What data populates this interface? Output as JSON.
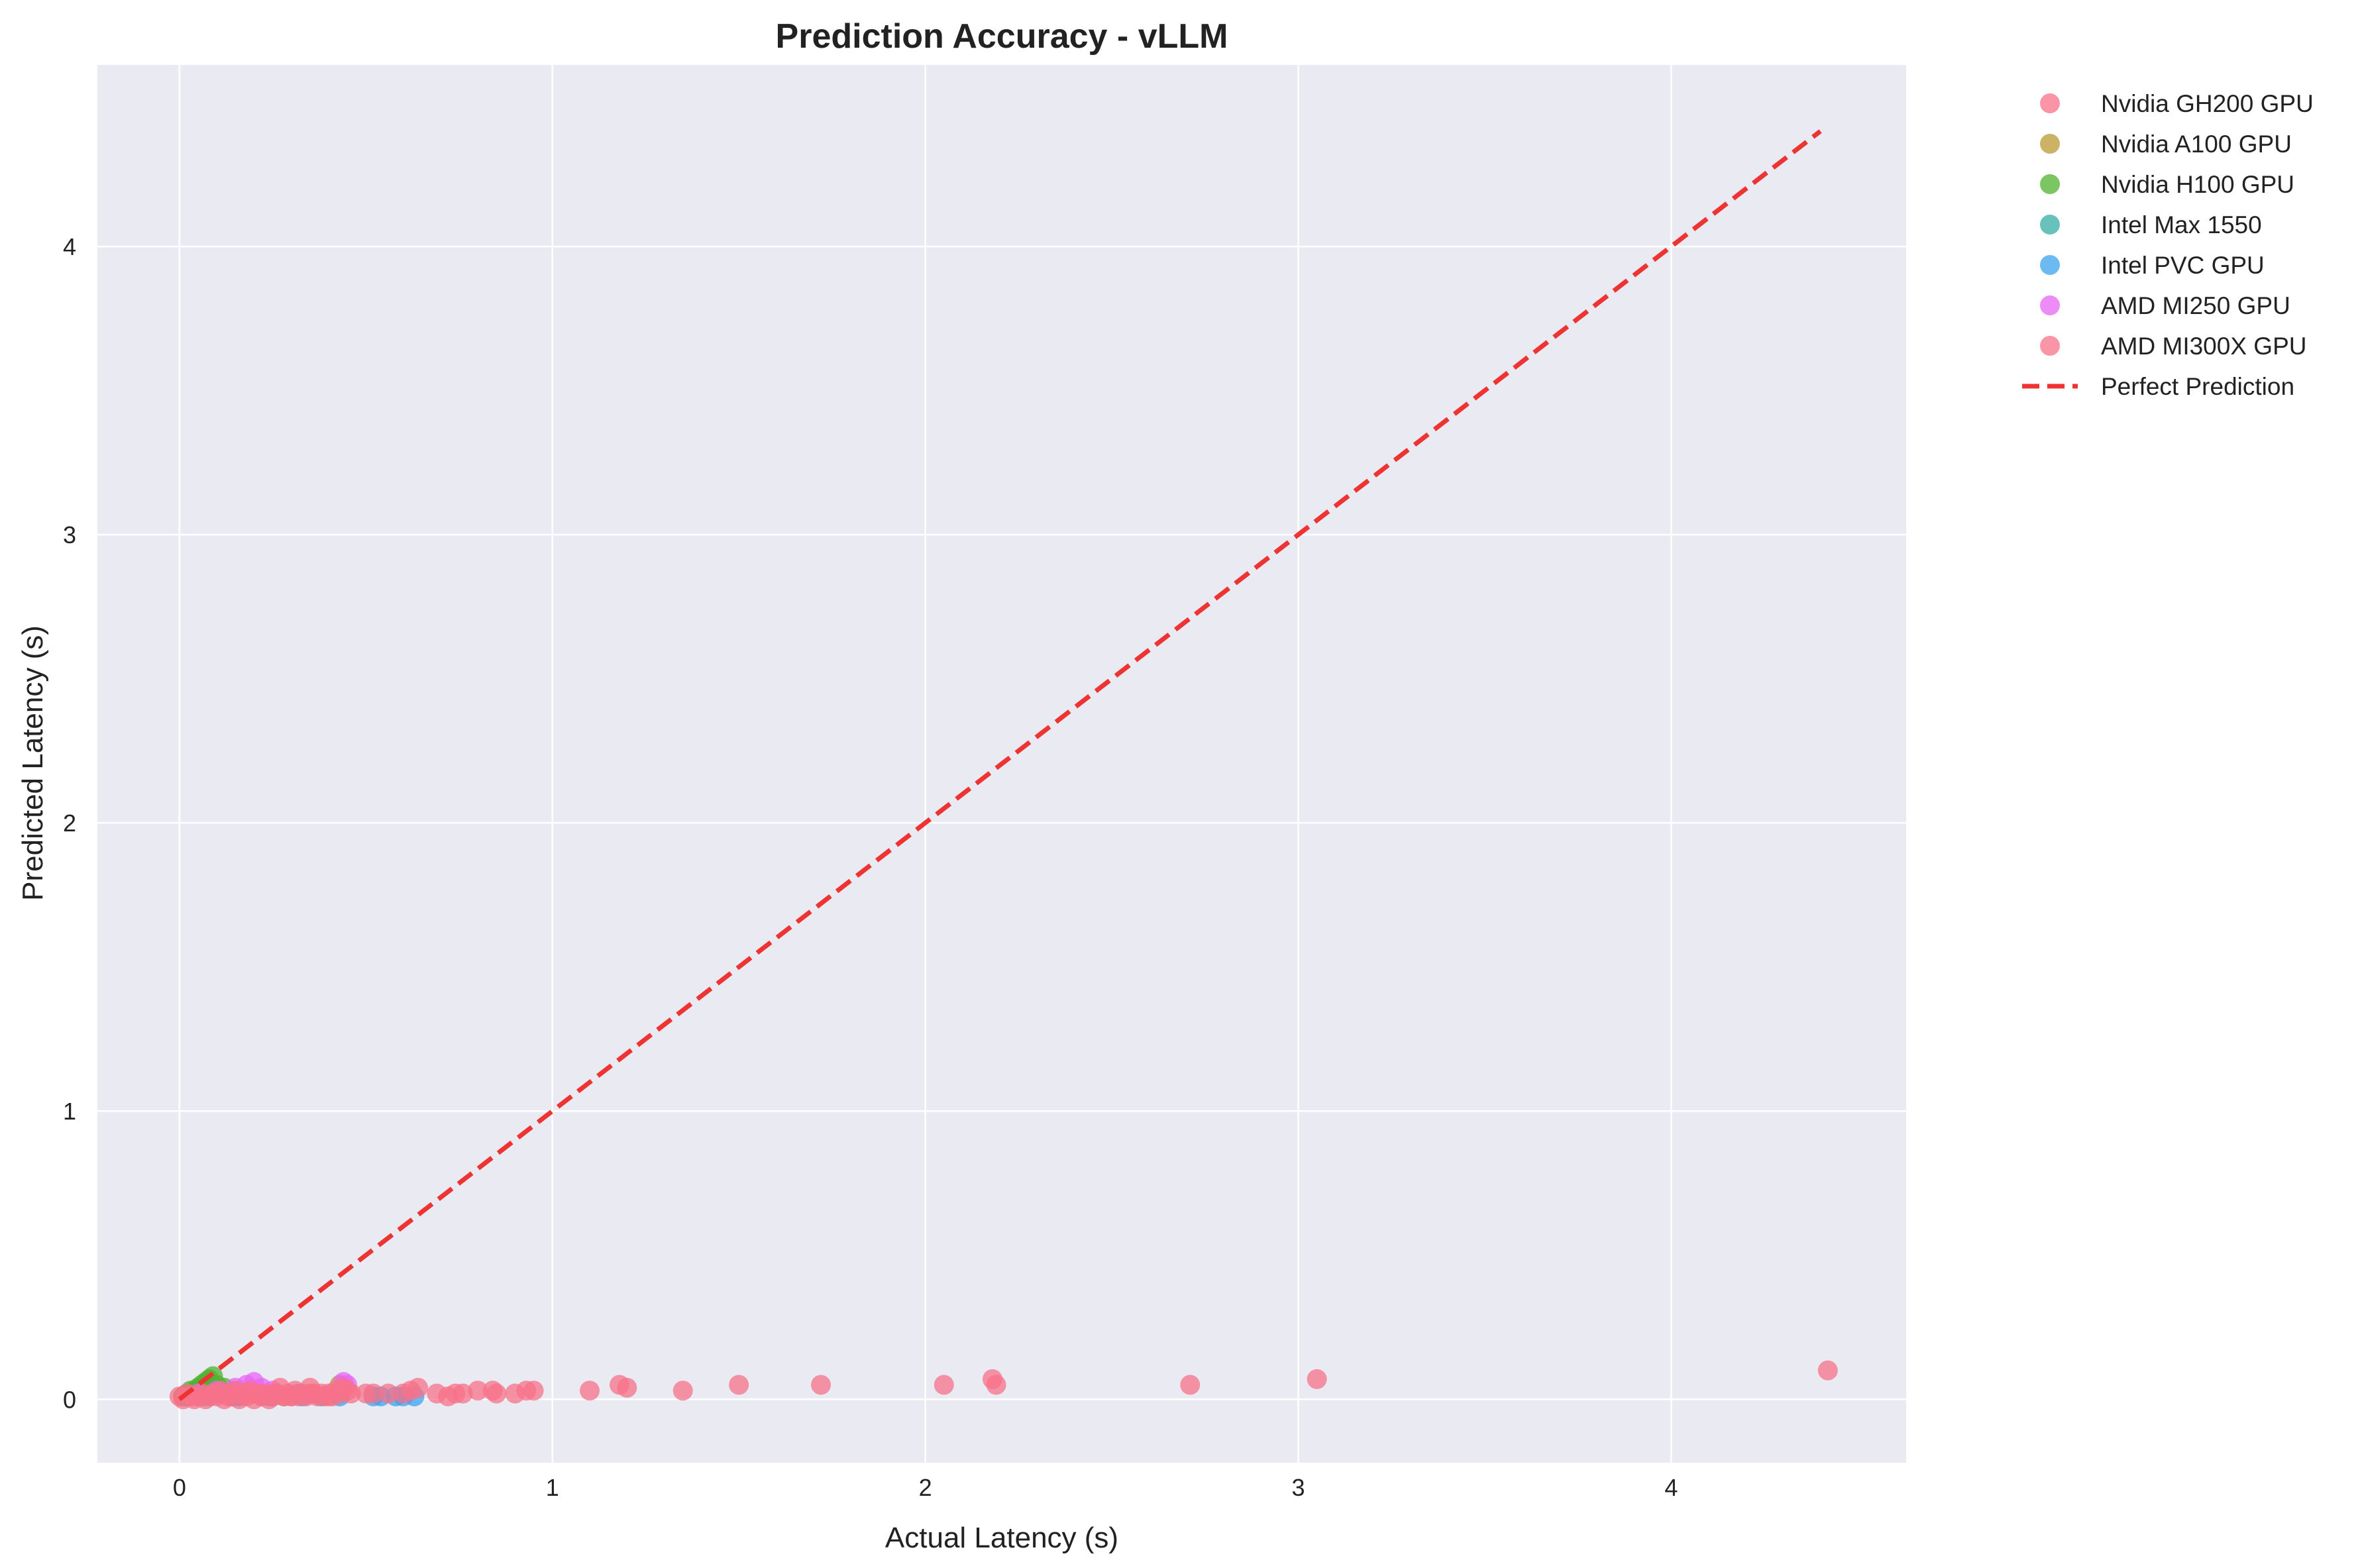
{
  "chart_data": {
    "type": "scatter",
    "title": "Prediction Accuracy - vLLM",
    "xlabel": "Actual Latency (s)",
    "ylabel": "Predicted Latency (s)",
    "xlim": [
      -0.22,
      4.63
    ],
    "ylim": [
      -0.22,
      4.63
    ],
    "xticks": [
      0,
      1,
      2,
      3,
      4
    ],
    "yticks": [
      0,
      1,
      2,
      3,
      4
    ],
    "grid": true,
    "legend_position": "outside-top-right",
    "reference_line": {
      "name": "Perfect Prediction",
      "color": "#ee3333",
      "style": "dashed",
      "from": [
        0,
        0
      ],
      "to": [
        4.4,
        4.4
      ]
    },
    "series": [
      {
        "name": "Nvidia GH200 GPU",
        "color": "#f77189",
        "points": [
          [
            0.01,
            0.01
          ],
          [
            0.03,
            0.02
          ],
          [
            0.05,
            0.01
          ],
          [
            0.08,
            0.03
          ],
          [
            0.1,
            0.02
          ],
          [
            0.13,
            0.01
          ],
          [
            0.15,
            0.03
          ],
          [
            0.18,
            0.02
          ],
          [
            0.22,
            0.01
          ],
          [
            0.26,
            0.02
          ],
          [
            0.3,
            0.01
          ],
          [
            0.35,
            0.02
          ],
          [
            0.4,
            0.01
          ]
        ]
      },
      {
        "name": "Nvidia A100 GPU",
        "color": "#bb9832",
        "points": [
          [
            0.02,
            0.01
          ],
          [
            0.05,
            0.02
          ],
          [
            0.09,
            0.02
          ],
          [
            0.14,
            0.01
          ],
          [
            0.2,
            0.02
          ],
          [
            0.28,
            0.01
          ],
          [
            0.36,
            0.02
          ],
          [
            0.43,
            0.05
          ]
        ]
      },
      {
        "name": "Nvidia H100 GPU",
        "color": "#50b131",
        "points": [
          [
            0.01,
            0.01
          ],
          [
            0.02,
            0.02
          ],
          [
            0.03,
            0.03
          ],
          [
            0.04,
            0.03
          ],
          [
            0.05,
            0.04
          ],
          [
            0.06,
            0.05
          ],
          [
            0.07,
            0.06
          ],
          [
            0.08,
            0.07
          ],
          [
            0.09,
            0.08
          ],
          [
            0.1,
            0.05
          ],
          [
            0.12,
            0.04
          ]
        ]
      },
      {
        "name": "Intel Max 1550",
        "color": "#36ada4",
        "points": [
          [
            0.02,
            0.01
          ],
          [
            0.06,
            0.01
          ],
          [
            0.1,
            0.02
          ],
          [
            0.16,
            0.01
          ],
          [
            0.24,
            0.01
          ],
          [
            0.32,
            0.02
          ],
          [
            0.38,
            0.01
          ]
        ]
      },
      {
        "name": "Intel PVC GPU",
        "color": "#3ba3ec",
        "points": [
          [
            0.03,
            0.01
          ],
          [
            0.08,
            0.01
          ],
          [
            0.15,
            0.01
          ],
          [
            0.25,
            0.01
          ],
          [
            0.33,
            0.01
          ],
          [
            0.43,
            0.01
          ],
          [
            0.52,
            0.01
          ],
          [
            0.54,
            0.01
          ],
          [
            0.58,
            0.01
          ],
          [
            0.6,
            0.01
          ],
          [
            0.63,
            0.01
          ]
        ]
      },
      {
        "name": "AMD MI250 GPU",
        "color": "#e866f4",
        "points": [
          [
            0.05,
            0.02
          ],
          [
            0.1,
            0.03
          ],
          [
            0.15,
            0.04
          ],
          [
            0.18,
            0.05
          ],
          [
            0.2,
            0.06
          ],
          [
            0.22,
            0.04
          ],
          [
            0.25,
            0.03
          ],
          [
            0.44,
            0.06
          ],
          [
            0.45,
            0.05
          ]
        ]
      },
      {
        "name": "AMD MI300X GPU",
        "color": "#f77189",
        "points": [
          [
            0.0,
            0.01
          ],
          [
            0.01,
            0.0
          ],
          [
            0.02,
            0.02
          ],
          [
            0.03,
            0.01
          ],
          [
            0.04,
            0.0
          ],
          [
            0.05,
            0.01
          ],
          [
            0.06,
            0.02
          ],
          [
            0.07,
            0.0
          ],
          [
            0.08,
            0.01
          ],
          [
            0.09,
            0.02
          ],
          [
            0.1,
            0.01
          ],
          [
            0.11,
            0.03
          ],
          [
            0.12,
            0.0
          ],
          [
            0.13,
            0.02
          ],
          [
            0.14,
            0.01
          ],
          [
            0.15,
            0.03
          ],
          [
            0.16,
            0.0
          ],
          [
            0.17,
            0.02
          ],
          [
            0.18,
            0.01
          ],
          [
            0.19,
            0.03
          ],
          [
            0.2,
            0.0
          ],
          [
            0.21,
            0.02
          ],
          [
            0.22,
            0.01
          ],
          [
            0.23,
            0.02
          ],
          [
            0.24,
            0.0
          ],
          [
            0.25,
            0.01
          ],
          [
            0.26,
            0.02
          ],
          [
            0.27,
            0.04
          ],
          [
            0.28,
            0.01
          ],
          [
            0.29,
            0.02
          ],
          [
            0.3,
            0.01
          ],
          [
            0.31,
            0.03
          ],
          [
            0.32,
            0.01
          ],
          [
            0.33,
            0.02
          ],
          [
            0.34,
            0.01
          ],
          [
            0.35,
            0.04
          ],
          [
            0.36,
            0.02
          ],
          [
            0.37,
            0.01
          ],
          [
            0.38,
            0.02
          ],
          [
            0.39,
            0.01
          ],
          [
            0.4,
            0.02
          ],
          [
            0.41,
            0.01
          ],
          [
            0.42,
            0.03
          ],
          [
            0.43,
            0.02
          ],
          [
            0.44,
            0.04
          ],
          [
            0.45,
            0.03
          ],
          [
            0.46,
            0.02
          ],
          [
            0.5,
            0.02
          ],
          [
            0.52,
            0.02
          ],
          [
            0.56,
            0.02
          ],
          [
            0.6,
            0.02
          ],
          [
            0.62,
            0.03
          ],
          [
            0.64,
            0.04
          ],
          [
            0.69,
            0.02
          ],
          [
            0.72,
            0.01
          ],
          [
            0.74,
            0.02
          ],
          [
            0.76,
            0.02
          ],
          [
            0.8,
            0.03
          ],
          [
            0.84,
            0.03
          ],
          [
            0.85,
            0.02
          ],
          [
            0.9,
            0.02
          ],
          [
            0.93,
            0.03
          ],
          [
            0.95,
            0.03
          ],
          [
            1.1,
            0.03
          ],
          [
            1.18,
            0.05
          ],
          [
            1.2,
            0.04
          ],
          [
            1.35,
            0.03
          ],
          [
            1.5,
            0.05
          ],
          [
            1.72,
            0.05
          ],
          [
            2.05,
            0.05
          ],
          [
            2.18,
            0.07
          ],
          [
            2.19,
            0.05
          ],
          [
            2.71,
            0.05
          ],
          [
            3.05,
            0.07
          ],
          [
            4.42,
            0.1
          ]
        ]
      }
    ]
  }
}
